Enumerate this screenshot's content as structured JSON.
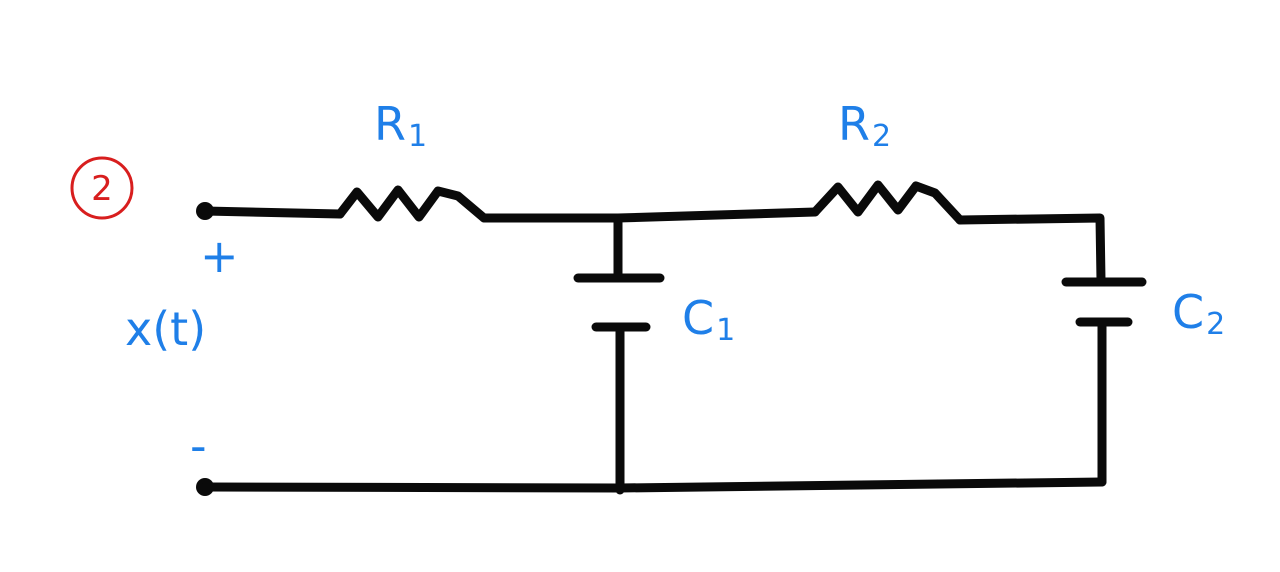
{
  "diagram": {
    "problem_number": "2",
    "labels": {
      "r1": {
        "main": "R",
        "sub": "1"
      },
      "r2": {
        "main": "R",
        "sub": "2"
      },
      "c1": {
        "main": "C",
        "sub": "1"
      },
      "c2": {
        "main": "C",
        "sub": "2"
      },
      "plus": "+",
      "minus": "-",
      "input": "x(t)"
    },
    "colors": {
      "wire": "#0a0a0a",
      "label": "#1f7fe8",
      "number": "#d81e1e"
    }
  }
}
